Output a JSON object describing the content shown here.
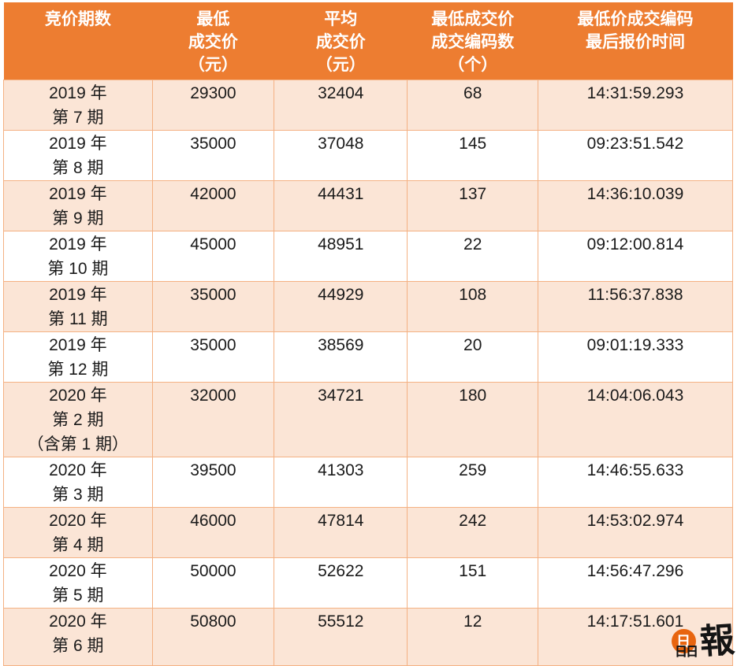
{
  "chart_data": {
    "type": "table",
    "title": "",
    "columns": [
      {
        "id": "period",
        "label": "竞价期数",
        "display": "竞价期数"
      },
      {
        "id": "min_price",
        "label": "最低成交价（元）",
        "display": "最低\n成交价\n（元）"
      },
      {
        "id": "avg_price",
        "label": "平均成交价（元）",
        "display": "平均\n成交价\n（元）"
      },
      {
        "id": "codes",
        "label": "最低成交价成交编码数（个）",
        "display": "最低成交价\n成交编码数\n（个）"
      },
      {
        "id": "last_time",
        "label": "最低价成交编码最后报价时间",
        "display": "最低价成交编码\n最后报价时间"
      }
    ],
    "rows": [
      {
        "period": "2019 年\n第 7 期",
        "min_price": 29300,
        "avg_price": 32404,
        "codes": 68,
        "last_time": "14:31:59.293"
      },
      {
        "period": "2019 年\n第 8 期",
        "min_price": 35000,
        "avg_price": 37048,
        "codes": 145,
        "last_time": "09:23:51.542"
      },
      {
        "period": "2019 年\n第 9 期",
        "min_price": 42000,
        "avg_price": 44431,
        "codes": 137,
        "last_time": "14:36:10.039"
      },
      {
        "period": "2019 年\n第 10 期",
        "min_price": 45000,
        "avg_price": 48951,
        "codes": 22,
        "last_time": "09:12:00.814"
      },
      {
        "period": "2019 年\n第 11 期",
        "min_price": 35000,
        "avg_price": 44929,
        "codes": 108,
        "last_time": "11:56:37.838"
      },
      {
        "period": "2019 年\n第 12 期",
        "min_price": 35000,
        "avg_price": 38569,
        "codes": 20,
        "last_time": "09:01:19.333"
      },
      {
        "period": "2020 年\n第 2 期\n（含第 1 期）",
        "min_price": 32000,
        "avg_price": 34721,
        "codes": 180,
        "last_time": "14:04:06.043"
      },
      {
        "period": "2020 年\n第 3 期",
        "min_price": 39500,
        "avg_price": 41303,
        "codes": 259,
        "last_time": "14:46:55.633"
      },
      {
        "period": "2020 年\n第 4 期",
        "min_price": 46000,
        "avg_price": 47814,
        "codes": 242,
        "last_time": "14:53:02.974"
      },
      {
        "period": "2020 年\n第 5 期",
        "min_price": 50000,
        "avg_price": 52622,
        "codes": 151,
        "last_time": "14:56:47.296"
      },
      {
        "period": "2020 年\n第 6 期",
        "min_price": 50800,
        "avg_price": 55512,
        "codes": 12,
        "last_time": "14:17:51.601"
      }
    ],
    "layout_hints": {
      "zebra_striping": true,
      "first_row_shaded": true,
      "cell_align": "center-top"
    }
  },
  "logo": {
    "full_name": "晶報",
    "top_char": "日",
    "bottom_chars": "日日",
    "bao_char": "報"
  },
  "colors": {
    "header_bg": "#ED7D31",
    "header_text": "#FFFFFF",
    "alt_row_bg": "#FBE5D6",
    "row_bg": "#FFFFFF",
    "border": "#F4B183",
    "body_text": "#1A1A1A",
    "logo_orange": "#E8650F"
  }
}
